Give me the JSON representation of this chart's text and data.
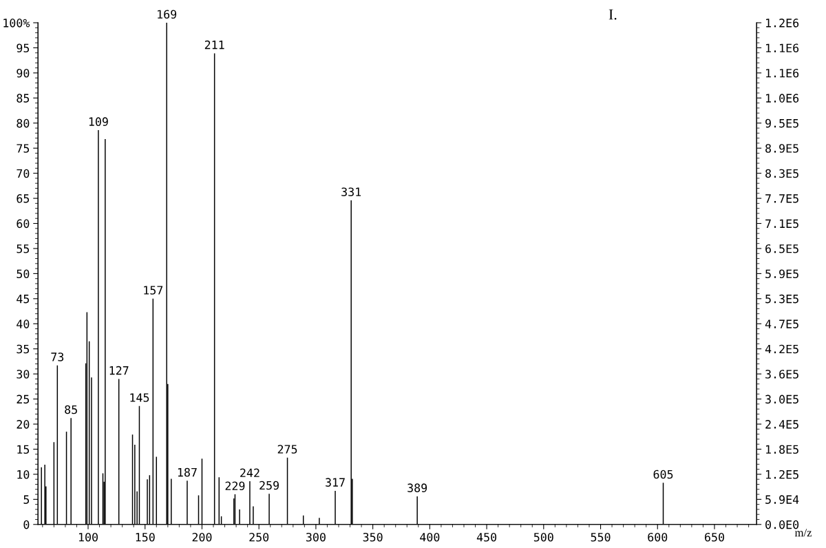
{
  "chart_data": {
    "type": "bar",
    "xlabel": "m/z",
    "x": [
      59,
      62,
      63,
      70,
      73,
      81,
      85,
      98,
      99,
      101,
      103,
      109,
      113,
      114,
      115,
      127,
      139,
      141,
      143,
      145,
      152,
      154,
      157,
      160,
      169,
      170,
      173,
      187,
      197,
      200,
      211,
      215,
      217,
      228,
      229,
      233,
      242,
      245,
      259,
      275,
      289,
      303,
      317,
      331,
      332,
      389,
      605
    ],
    "series": [
      {
        "color": "#000000",
        "values": [
          11.4,
          11.9,
          7.6,
          16.4,
          31.7,
          18.5,
          21.2,
          32.1,
          42.3,
          36.5,
          29.3,
          78.6,
          10.2,
          8.5,
          76.8,
          29.0,
          17.9,
          15.9,
          6.6,
          23.6,
          9.0,
          9.8,
          45.0,
          13.5,
          100,
          28.0,
          9.1,
          8.7,
          5.8,
          13.1,
          93.9,
          9.4,
          1.6,
          5.2,
          6.0,
          3.0,
          8.6,
          3.6,
          6.1,
          13.3,
          1.8,
          1.3,
          6.7,
          64.6,
          9.1,
          5.6,
          8.3
        ]
      }
    ],
    "xlim": [
      56,
      687
    ],
    "xticks": [
      100,
      150,
      200,
      250,
      300,
      350,
      400,
      450,
      500,
      550,
      600,
      650
    ],
    "ylim": [
      0,
      100
    ],
    "yticks": [
      0,
      5,
      10,
      15,
      20,
      25,
      30,
      35,
      40,
      45,
      50,
      55,
      60,
      65,
      70,
      75,
      80,
      85,
      90,
      95,
      {
        "value": 100,
        "label": "100%"
      }
    ],
    "y2lim": [
      0,
      1186000
    ],
    "y2ticks": [
      {
        "value": 0,
        "label": "0.0E0"
      },
      {
        "value": 59300,
        "label": "5.9E4"
      },
      {
        "value": 118600,
        "label": "1.2E5"
      },
      {
        "value": 177900,
        "label": "1.8E5"
      },
      {
        "value": 237200,
        "label": "2.4E5"
      },
      {
        "value": 296500,
        "label": "3.0E5"
      },
      {
        "value": 355800,
        "label": "3.6E5"
      },
      {
        "value": 415100,
        "label": "4.2E5"
      },
      {
        "value": 474400,
        "label": "4.7E5"
      },
      {
        "value": 533700,
        "label": "5.3E5"
      },
      {
        "value": 593000,
        "label": "5.9E5"
      },
      {
        "value": 652300,
        "label": "6.5E5"
      },
      {
        "value": 711600,
        "label": "7.1E5"
      },
      {
        "value": 770900,
        "label": "7.7E5"
      },
      {
        "value": 830200,
        "label": "8.3E5"
      },
      {
        "value": 889500,
        "label": "8.9E5"
      },
      {
        "value": 948800,
        "label": "9.5E5"
      },
      {
        "value": 1008100,
        "label": "1.0E6"
      },
      {
        "value": 1067400,
        "label": "1.1E6"
      },
      {
        "value": 1126700,
        "label": "1.1E6"
      },
      {
        "value": 1186000,
        "label": "1.2E6"
      }
    ],
    "grid": false,
    "annotations": [
      "I.",
      {
        "text": "73",
        "x": 73,
        "y": 31.7
      },
      {
        "text": "85",
        "x": 85,
        "y": 21.2
      },
      {
        "text": "109",
        "x": 109,
        "y": 78.6
      },
      {
        "text": "127",
        "x": 127,
        "y": 29.0
      },
      {
        "text": "145",
        "x": 145,
        "y": 23.6
      },
      {
        "text": "157",
        "x": 157,
        "y": 45.0
      },
      {
        "text": "169",
        "x": 169,
        "y": 100
      },
      {
        "text": "187",
        "x": 187,
        "y": 8.7
      },
      {
        "text": "211",
        "x": 211,
        "y": 93.9
      },
      {
        "text": "229",
        "x": 229,
        "y": 6.0
      },
      {
        "text": "242",
        "x": 242,
        "y": 8.6
      },
      {
        "text": "259",
        "x": 259,
        "y": 6.1
      },
      {
        "text": "275",
        "x": 275,
        "y": 13.3
      },
      {
        "text": "317",
        "x": 317,
        "y": 6.7
      },
      {
        "text": "331",
        "x": 331,
        "y": 64.6
      },
      {
        "text": "389",
        "x": 389,
        "y": 5.6
      },
      {
        "text": "605",
        "x": 605,
        "y": 8.3
      }
    ]
  }
}
